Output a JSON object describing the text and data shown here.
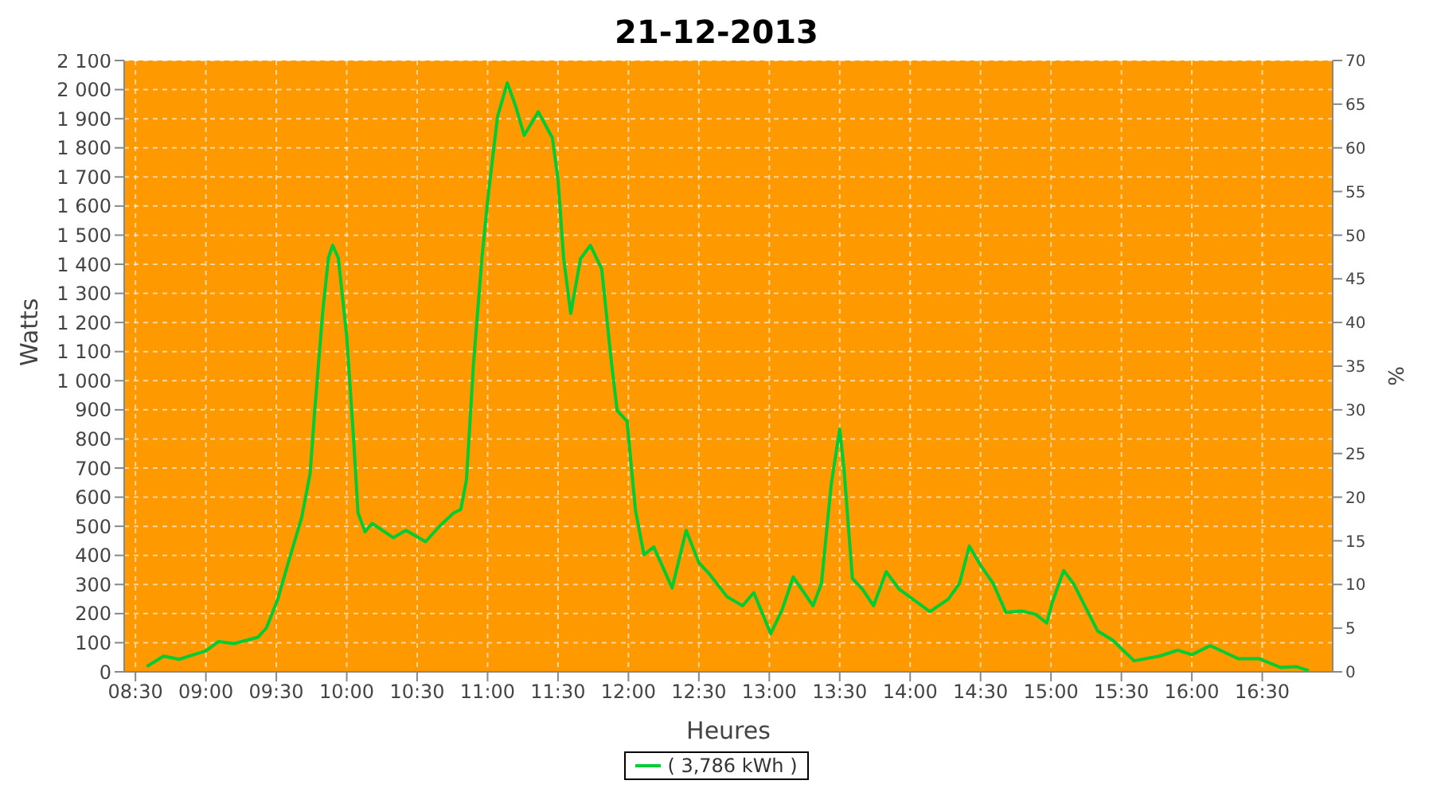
{
  "chart_data": {
    "type": "line",
    "title": "21-12-2013",
    "xlabel": "Heures",
    "ylabel": "Watts",
    "y2label": "%",
    "x": [
      8.58,
      8.7,
      8.81,
      9.0,
      9.09,
      9.2,
      9.37,
      9.43,
      9.51,
      9.58,
      9.68,
      9.74,
      9.77,
      9.83,
      9.87,
      9.9,
      9.94,
      10.0,
      10.05,
      10.08,
      10.13,
      10.18,
      10.33,
      10.42,
      10.56,
      10.66,
      10.76,
      10.81,
      10.85,
      10.9,
      10.96,
      11.0,
      11.07,
      11.14,
      11.2,
      11.26,
      11.36,
      11.46,
      11.5,
      11.54,
      11.59,
      11.66,
      11.73,
      11.81,
      11.88,
      11.92,
      11.99,
      12.05,
      12.11,
      12.18,
      12.31,
      12.41,
      12.5,
      12.57,
      12.7,
      12.81,
      12.89,
      13.01,
      13.09,
      13.17,
      13.31,
      13.37,
      13.44,
      13.5,
      13.53,
      13.59,
      13.66,
      13.74,
      13.83,
      13.92,
      14.14,
      14.27,
      14.35,
      14.42,
      14.5,
      14.59,
      14.68,
      14.79,
      14.89,
      14.97,
      15.01,
      15.09,
      15.16,
      15.33,
      15.44,
      15.59,
      15.77,
      15.9,
      16.0,
      16.13,
      16.33,
      16.48,
      16.63,
      16.74,
      16.83
    ],
    "series": [
      {
        "name": "( 3,786 kWh )",
        "color": "#00cc33",
        "values": [
          18,
          54,
          43,
          72,
          104,
          97,
          119,
          151,
          249,
          367,
          530,
          681,
          881,
          1240,
          1422,
          1465,
          1422,
          1151,
          789,
          546,
          481,
          510,
          461,
          486,
          447,
          501,
          546,
          558,
          660,
          1059,
          1422,
          1618,
          1906,
          2023,
          1942,
          1843,
          1924,
          1834,
          1690,
          1420,
          1231,
          1420,
          1465,
          1384,
          1059,
          897,
          861,
          555,
          402,
          429,
          288,
          486,
          375,
          339,
          258,
          227,
          272,
          131,
          212,
          326,
          227,
          303,
          645,
          834,
          699,
          321,
          285,
          227,
          344,
          285,
          207,
          249,
          303,
          432,
          366,
          303,
          204,
          209,
          198,
          168,
          240,
          348,
          303,
          141,
          108,
          38,
          54,
          74,
          59,
          90,
          45,
          45,
          15,
          18,
          4
        ]
      }
    ],
    "xlim": [
      8.42,
      17.0
    ],
    "xticks": [
      {
        "value": 8.5,
        "label": "08:30"
      },
      {
        "value": 9,
        "label": "09:00"
      },
      {
        "value": 9.5,
        "label": "09:30"
      },
      {
        "value": 10,
        "label": "10:00"
      },
      {
        "value": 10.5,
        "label": "10:30"
      },
      {
        "value": 11,
        "label": "11:00"
      },
      {
        "value": 11.5,
        "label": "11:30"
      },
      {
        "value": 12,
        "label": "12:00"
      },
      {
        "value": 12.5,
        "label": "12:30"
      },
      {
        "value": 13,
        "label": "13:00"
      },
      {
        "value": 13.5,
        "label": "13:30"
      },
      {
        "value": 14,
        "label": "14:00"
      },
      {
        "value": 14.5,
        "label": "14:30"
      },
      {
        "value": 15,
        "label": "15:00"
      },
      {
        "value": 15.5,
        "label": "15:30"
      },
      {
        "value": 16,
        "label": "16:00"
      },
      {
        "value": 16.5,
        "label": "16:30"
      }
    ],
    "ylim": [
      0,
      2100
    ],
    "yticks": [
      0,
      100,
      200,
      300,
      400,
      500,
      600,
      700,
      800,
      900,
      {
        "value": 1000,
        "label": "1 000"
      },
      {
        "value": 1100,
        "label": "1 100"
      },
      {
        "value": 1200,
        "label": "1 200"
      },
      {
        "value": 1300,
        "label": "1 300"
      },
      {
        "value": 1400,
        "label": "1 400"
      },
      {
        "value": 1500,
        "label": "1 500"
      },
      {
        "value": 1600,
        "label": "1 600"
      },
      {
        "value": 1700,
        "label": "1 700"
      },
      {
        "value": 1800,
        "label": "1 800"
      },
      {
        "value": 1900,
        "label": "1 900"
      },
      {
        "value": 2000,
        "label": "2 000"
      },
      {
        "value": 2100,
        "label": "2 100"
      }
    ],
    "y2lim": [
      0,
      70
    ],
    "y2ticks": [
      0,
      5,
      10,
      15,
      20,
      25,
      30,
      35,
      40,
      45,
      50,
      55,
      60,
      65,
      70
    ],
    "grid": true,
    "legend": "bottom",
    "marker": "none",
    "line_style": "solid"
  }
}
